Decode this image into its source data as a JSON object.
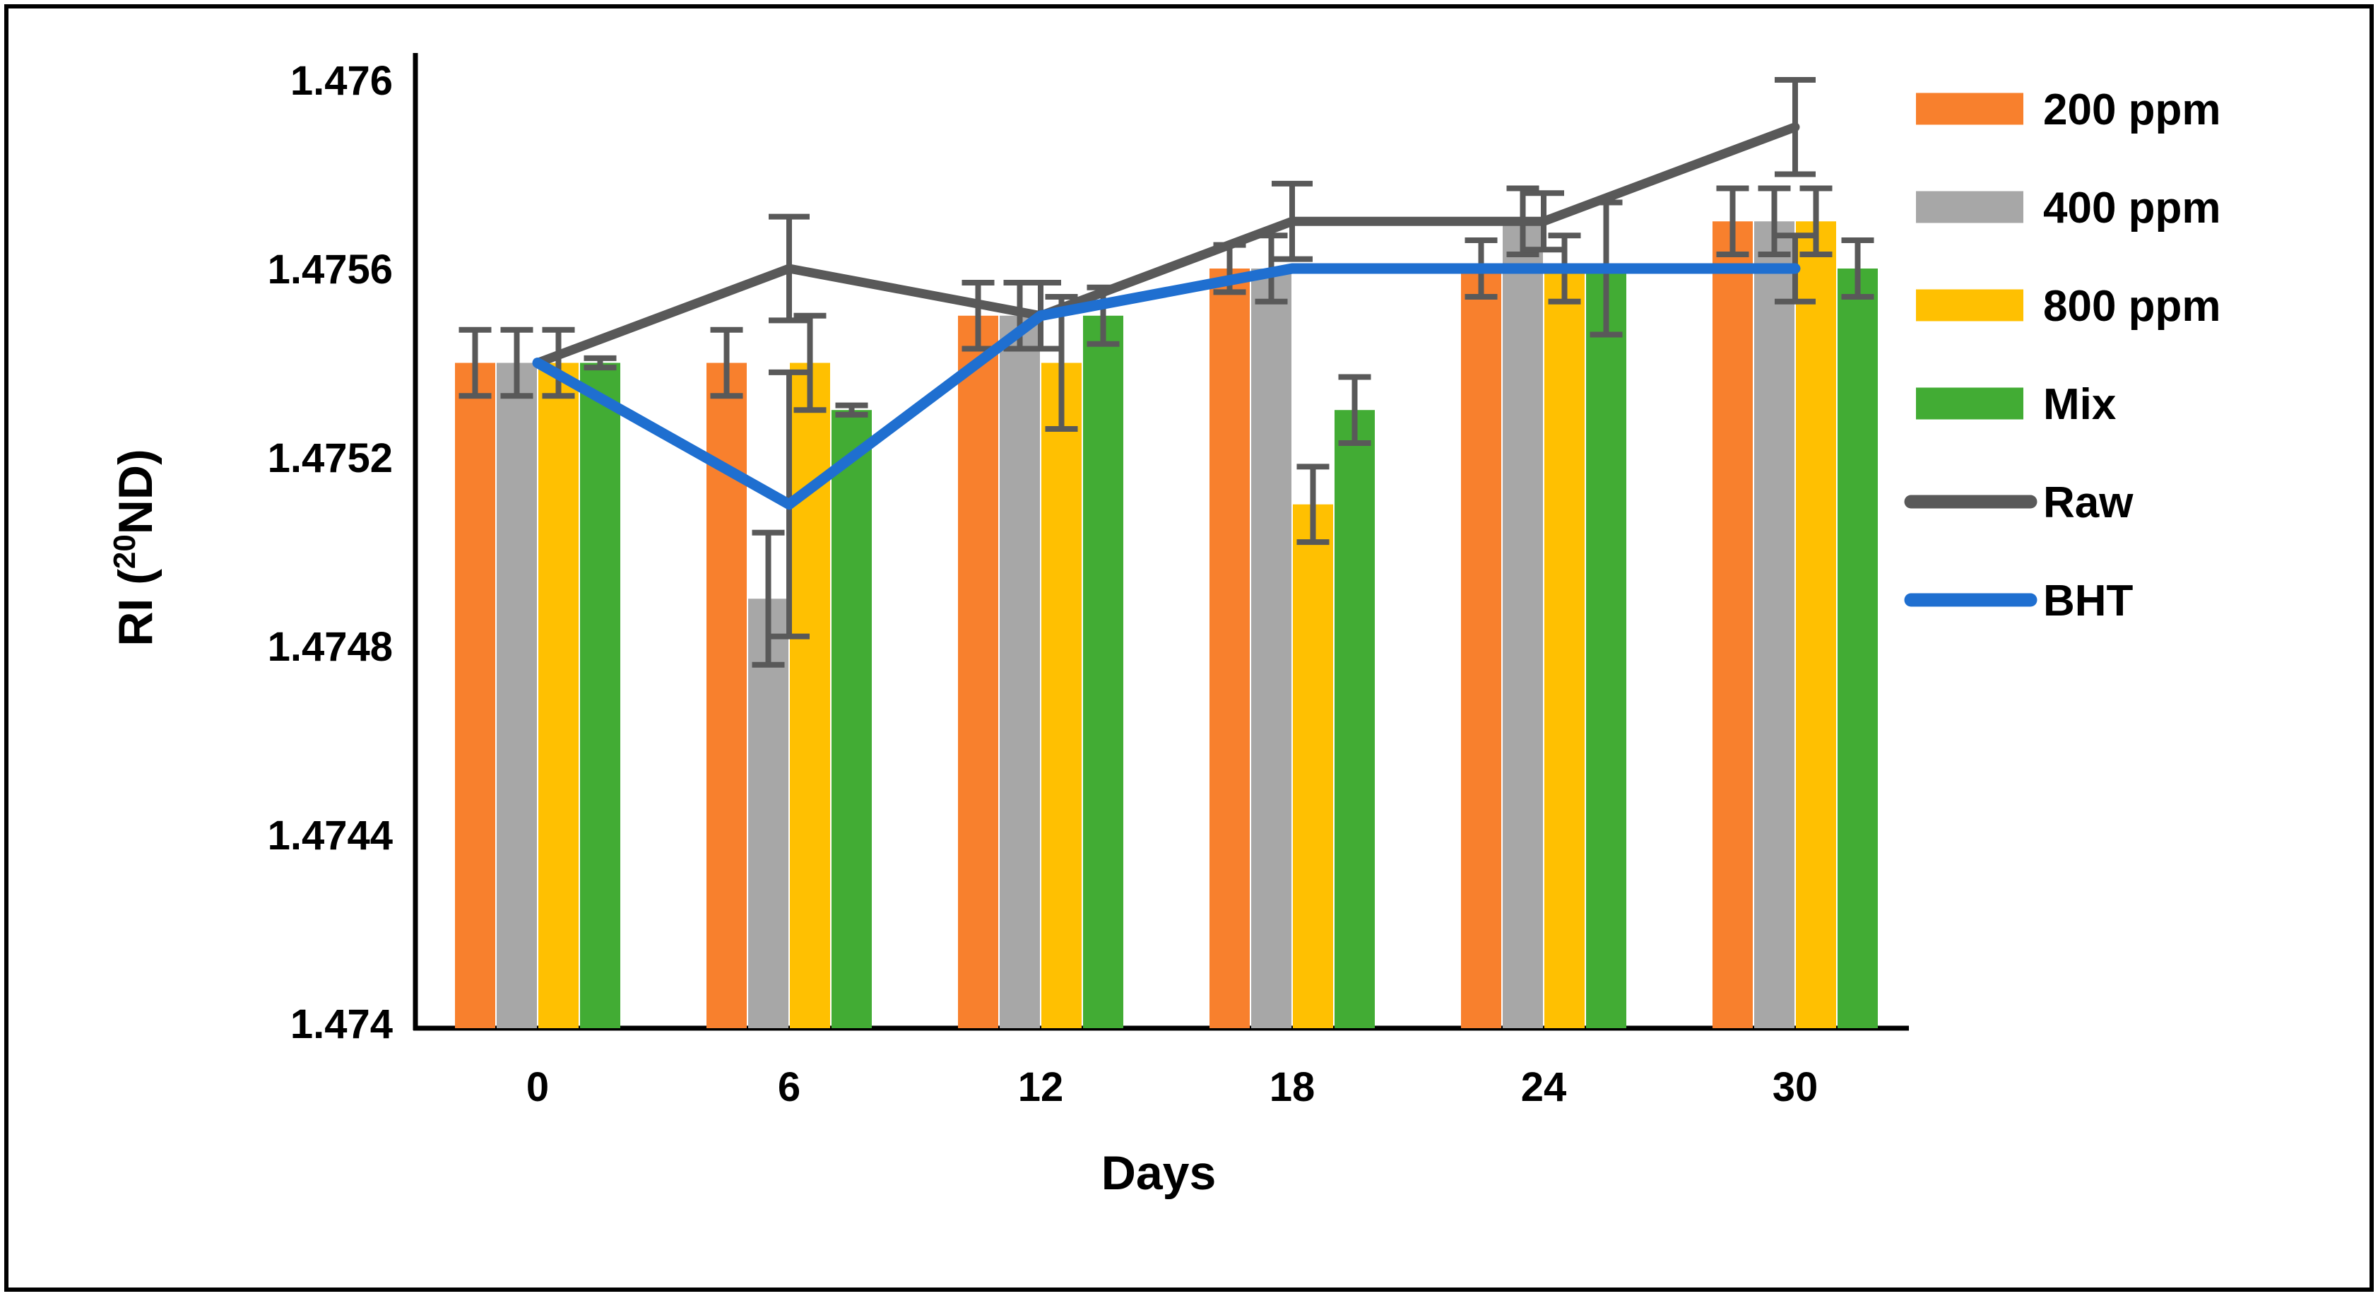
{
  "figure": {
    "description": "Clustered bar chart with overlaid line series showing refractive index (RI) of oil samples over storage days",
    "background": "#ffffff",
    "border_color": "#000000"
  },
  "chart_data": {
    "type": "bar",
    "subtype": "clustered bars with two overlaid line series and error bars",
    "title": "",
    "xlabel": "Days",
    "ylabel_prefix": "RI (",
    "ylabel_sup": "20",
    "ylabel_suffix": "ND)",
    "categories": [
      "0",
      "6",
      "12",
      "18",
      "24",
      "30"
    ],
    "ylim": [
      1.474,
      1.476
    ],
    "ytick_values": [
      1.476,
      1.4756,
      1.4752,
      1.4748,
      1.4744,
      1.474
    ],
    "ytick_labels": [
      "1.476",
      "1.4756",
      "1.4752",
      "1.4748",
      "1.4744",
      "1.474"
    ],
    "grid": false,
    "legend_position": "right",
    "axis_color": "#000000",
    "error_bar_color": "#595959",
    "bar_series": [
      {
        "name": "200 ppm",
        "color": "#F8802D",
        "values": [
          1.4754,
          1.4754,
          1.4755,
          1.4756,
          1.4756,
          1.4757
        ],
        "errors": [
          7e-05,
          7e-05,
          7e-05,
          5e-05,
          6e-05,
          7e-05
        ]
      },
      {
        "name": "400 ppm",
        "color": "#A7A7A7",
        "values": [
          1.4754,
          1.4749,
          1.4755,
          1.4756,
          1.4757,
          1.4757
        ],
        "errors": [
          7e-05,
          0.00014,
          7e-05,
          7e-05,
          7e-05,
          7e-05
        ]
      },
      {
        "name": "800 ppm",
        "color": "#FFC001",
        "values": [
          1.4754,
          1.4754,
          1.4754,
          1.4751,
          1.4756,
          1.4757
        ],
        "errors": [
          7e-05,
          0.0001,
          0.00014,
          8e-05,
          7e-05,
          7e-05
        ]
      },
      {
        "name": "Mix",
        "color": "#42AC34",
        "values": [
          1.4754,
          1.4753,
          1.4755,
          1.4753,
          1.4756,
          1.4756
        ],
        "errors": [
          1e-05,
          1e-05,
          6e-05,
          7e-05,
          0.00014,
          6e-05
        ]
      }
    ],
    "line_series": [
      {
        "name": "Raw",
        "color": "#595959",
        "values": [
          1.4754,
          1.4756,
          1.4755,
          1.4757,
          1.4757,
          1.4759
        ],
        "errors": [
          0,
          0.00011,
          7e-05,
          8e-05,
          6e-05,
          0.0001
        ]
      },
      {
        "name": "BHT",
        "color": "#1F6FD0",
        "values": [
          1.4754,
          1.4751,
          1.4755,
          1.4756,
          1.4756,
          1.4756
        ],
        "errors": [
          0,
          0.00028,
          0,
          0,
          0,
          7e-05
        ]
      }
    ]
  }
}
